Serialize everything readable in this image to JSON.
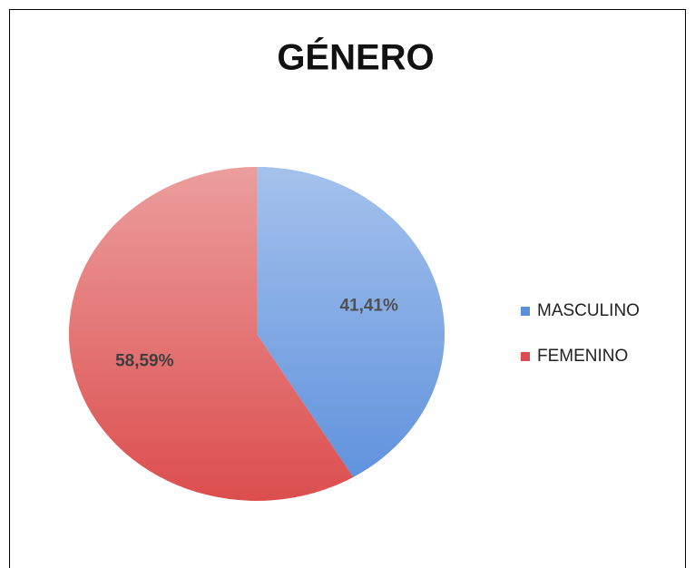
{
  "chart_data": {
    "type": "pie",
    "title": "GÉNERO",
    "categories": [
      "MASCULINO",
      "FEMENINO"
    ],
    "values": [
      41.41,
      58.59
    ],
    "value_labels": [
      "41,41%",
      "58,59%"
    ],
    "colors": [
      "#5b8fdc",
      "#dc4e4e"
    ],
    "legend": "right"
  }
}
